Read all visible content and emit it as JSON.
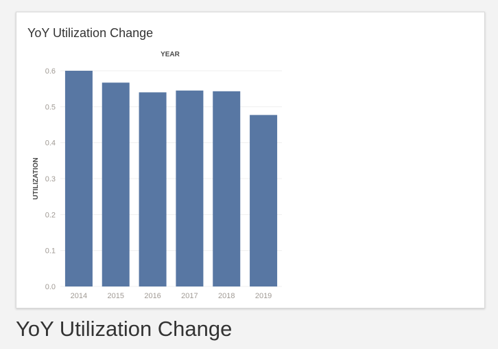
{
  "card": {
    "title": "YoY Utilization Change"
  },
  "caption": "YoY Utilization Change",
  "colors": {
    "bar": "#5877a3",
    "axis_text": "#a09a94",
    "grid": "#efefef"
  },
  "chart_data": {
    "type": "bar",
    "title": "YoY Utilization Change",
    "xlabel": "YEAR",
    "ylabel": "UTILIZATION",
    "categories": [
      "2014",
      "2015",
      "2016",
      "2017",
      "2018",
      "2019"
    ],
    "values": [
      0.6,
      0.567,
      0.54,
      0.545,
      0.543,
      0.477
    ],
    "ylim": [
      0,
      0.6
    ],
    "yticks": [
      "0.0",
      "0.1",
      "0.2",
      "0.3",
      "0.4",
      "0.5",
      "0.6"
    ],
    "grid": true,
    "legend": "none"
  }
}
